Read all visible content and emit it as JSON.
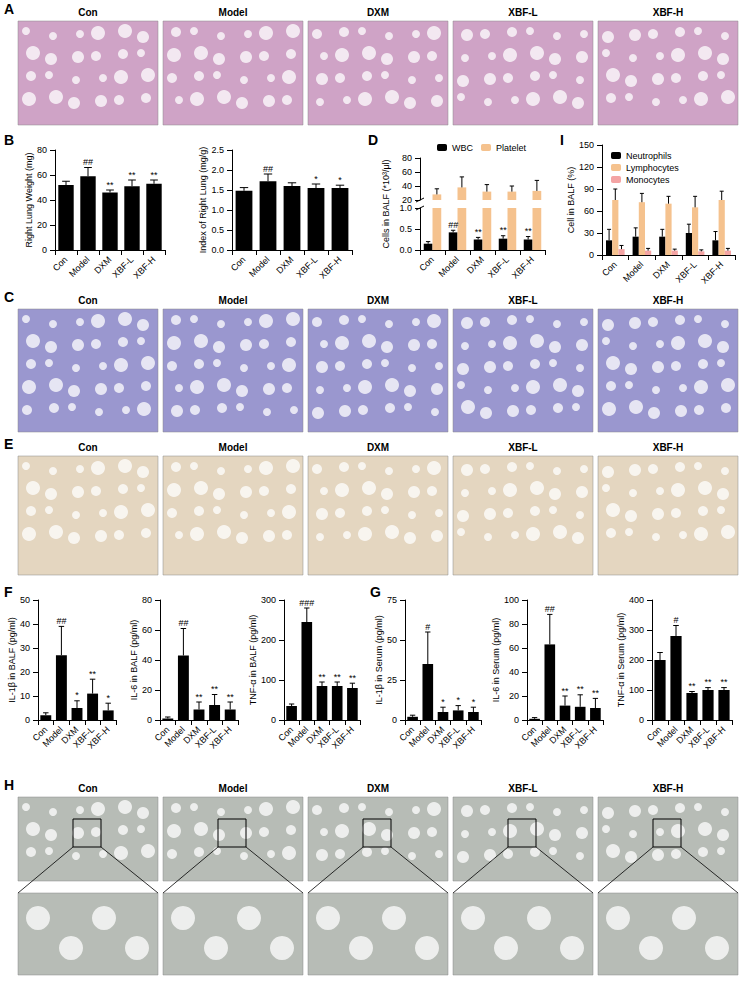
{
  "image_panels": [
    {
      "panel": "A",
      "labels": [
        "Con",
        "Model",
        "DXM",
        "XBF-L",
        "XBF-H"
      ],
      "color": "#cfa3c6"
    },
    {
      "panel": "C",
      "labels": [
        "Con",
        "Model",
        "DXM",
        "XBF-L",
        "XBF-H"
      ],
      "color": "#9a97cf"
    },
    {
      "panel": "E",
      "labels": [
        "Con",
        "Model",
        "DXM",
        "XBF-L",
        "XBF-H"
      ],
      "color": "#e4d6c0"
    },
    {
      "panel": "H",
      "labels": [
        "Con",
        "Model",
        "DXM",
        "XBF-L",
        "XBF-H"
      ],
      "color": "#b7bcb6"
    }
  ],
  "chart_data": [
    {
      "panel": "B",
      "type": "bar",
      "categories": [
        "Con",
        "Model",
        "DXM",
        "XBF-L",
        "XBF-H"
      ],
      "ylabel": "Right Lung Weight (mg)",
      "values": [
        52,
        59,
        46,
        51,
        53
      ],
      "errors": [
        3,
        7,
        2,
        5,
        3
      ],
      "significance": [
        null,
        "##",
        "**",
        "**",
        "**"
      ],
      "color": "#000000",
      "ylim": [
        0,
        80
      ],
      "yticks": [
        0,
        20,
        40,
        60,
        80
      ],
      "grid": false
    },
    {
      "type": "bar",
      "categories": [
        "Con",
        "Model",
        "DXM",
        "XBF-L",
        "XBF-H"
      ],
      "ylabel": "Index of Right Lung (mg/g)",
      "values": [
        1.48,
        1.72,
        1.6,
        1.55,
        1.55
      ],
      "errors": [
        0.08,
        0.18,
        0.08,
        0.1,
        0.07
      ],
      "significance": [
        null,
        "##",
        null,
        "*",
        "*"
      ],
      "color": "#000000",
      "ylim": [
        0,
        2.5
      ],
      "yticks": [
        {
          "value": 0,
          "label": "0.0"
        },
        {
          "value": 0.5,
          "label": "0.5"
        },
        {
          "value": 1,
          "label": "1.0"
        },
        {
          "value": 1.5,
          "label": "1.5"
        },
        {
          "value": 2,
          "label": "2.0"
        },
        {
          "value": 2.5,
          "label": "2.5"
        }
      ],
      "grid": false
    },
    {
      "panel": "D",
      "type": "bar",
      "categories": [
        "Con",
        "Model",
        "DXM",
        "XBF-L",
        "XBF-H"
      ],
      "ylabel": "Cells in BALF (*10³/μl)",
      "series": [
        {
          "name": "WBC",
          "color": "#000000",
          "values": [
            0.15,
            0.42,
            0.25,
            0.27,
            0.25
          ],
          "errors": [
            0.05,
            0.05,
            0.05,
            0.07,
            0.07
          ],
          "significance": [
            null,
            "##",
            "**",
            "**",
            "**"
          ]
        },
        {
          "name": "Platelet",
          "color": "#f5c28e",
          "values": [
            28,
            38,
            32,
            32,
            33
          ],
          "errors": [
            8,
            15,
            10,
            8,
            15
          ],
          "significance": [
            null,
            null,
            null,
            null,
            null
          ]
        }
      ],
      "ylim": [
        0,
        80
      ],
      "y_break": [
        1,
        20
      ],
      "yticks": [
        {
          "value": 0,
          "label": "0.0"
        },
        {
          "value": 0.5,
          "label": "0.5"
        },
        {
          "value": 1,
          "label": "1.0"
        },
        20,
        40,
        60,
        80
      ],
      "legend": "top",
      "grid": false
    },
    {
      "panel": "I",
      "type": "bar",
      "categories": [
        "Con",
        "Model",
        "DXM",
        "XBF-L",
        "XBF-H"
      ],
      "ylabel": "Cell in BALF (%)",
      "series": [
        {
          "name": "Neutrophils",
          "color": "#000000",
          "values": [
            20,
            25,
            25,
            30,
            20
          ],
          "errors": [
            15,
            12,
            10,
            12,
            12
          ]
        },
        {
          "name": "Lymphocytes",
          "color": "#f5c28e",
          "values": [
            75,
            72,
            70,
            65,
            75
          ],
          "errors": [
            15,
            12,
            10,
            15,
            12
          ]
        },
        {
          "name": "Monocytes",
          "color": "#f4a4a4",
          "values": [
            8,
            6,
            6,
            5,
            6
          ],
          "errors": [
            5,
            3,
            2,
            2,
            3
          ]
        }
      ],
      "ylim": [
        0,
        150
      ],
      "yticks": [
        0,
        30,
        60,
        90,
        120,
        150
      ],
      "legend": "top-left",
      "grid": false
    },
    {
      "panel": "F",
      "type": "bar",
      "categories": [
        "Con",
        "Model",
        "DXM",
        "XBF-L",
        "XBF-H"
      ],
      "ylabel": "IL-1β in BALF (pg/ml)",
      "values": [
        2,
        27,
        5,
        11,
        4
      ],
      "errors": [
        1,
        12,
        3,
        6,
        3
      ],
      "significance": [
        null,
        "##",
        "*",
        "**",
        "*"
      ],
      "color": "#000000",
      "ylim": [
        0,
        50
      ],
      "yticks": [
        0,
        10,
        20,
        30,
        40,
        50
      ],
      "grid": false
    },
    {
      "type": "bar",
      "categories": [
        "Con",
        "Model",
        "DXM",
        "XBF-L",
        "XBF-H"
      ],
      "ylabel": "IL-6 in BALF (pg/ml)",
      "values": [
        1,
        43,
        7,
        10,
        7
      ],
      "errors": [
        1,
        18,
        5,
        7,
        5
      ],
      "significance": [
        null,
        "##",
        "**",
        "**",
        "**"
      ],
      "color": "#000000",
      "ylim": [
        0,
        80
      ],
      "yticks": [
        0,
        20,
        40,
        60,
        80
      ],
      "grid": false
    },
    {
      "type": "bar",
      "categories": [
        "Con",
        "Model",
        "DXM",
        "XBF-L",
        "XBF-H"
      ],
      "ylabel": "TNF-α in BALF (pg/ml)",
      "values": [
        35,
        245,
        85,
        85,
        80
      ],
      "errors": [
        5,
        35,
        10,
        10,
        12
      ],
      "significance": [
        null,
        "###",
        "**",
        "**",
        "**"
      ],
      "color": "#000000",
      "ylim": [
        0,
        300
      ],
      "yticks": [
        0,
        100,
        200,
        300
      ],
      "grid": false
    },
    {
      "panel": "G",
      "type": "bar",
      "categories": [
        "Con",
        "Model",
        "DXM",
        "XBF-L",
        "XBF-H"
      ],
      "ylabel": "IL-1β in Serum (pg/ml)",
      "values": [
        2,
        35,
        5,
        6,
        5
      ],
      "errors": [
        1,
        20,
        3,
        3,
        3
      ],
      "significance": [
        null,
        "#",
        "*",
        "*",
        "*"
      ],
      "color": "#000000",
      "ylim": [
        0,
        75
      ],
      "yticks": [
        0,
        25,
        50,
        75
      ],
      "grid": false
    },
    {
      "type": "bar",
      "categories": [
        "Con",
        "Model",
        "DXM",
        "XBF-L",
        "XBF-H"
      ],
      "ylabel": "IL-6 in Serum (pg/ml)",
      "values": [
        1,
        63,
        12,
        11,
        10
      ],
      "errors": [
        1,
        25,
        8,
        10,
        8
      ],
      "significance": [
        null,
        "##",
        "**",
        "**",
        "**"
      ],
      "color": "#000000",
      "ylim": [
        0,
        100
      ],
      "yticks": [
        0,
        20,
        40,
        60,
        80,
        100
      ],
      "grid": false
    },
    {
      "type": "bar",
      "categories": [
        "Con",
        "Model",
        "DXM",
        "XBF-L",
        "XBF-H"
      ],
      "ylabel": "TNF-α in Serum (pg/ml)",
      "values": [
        200,
        280,
        90,
        100,
        100
      ],
      "errors": [
        25,
        35,
        5,
        8,
        8
      ],
      "significance": [
        null,
        "#",
        "**",
        "**",
        "**"
      ],
      "color": "#000000",
      "ylim": [
        0,
        400
      ],
      "yticks": [
        0,
        100,
        200,
        300,
        400
      ],
      "grid": false
    }
  ]
}
